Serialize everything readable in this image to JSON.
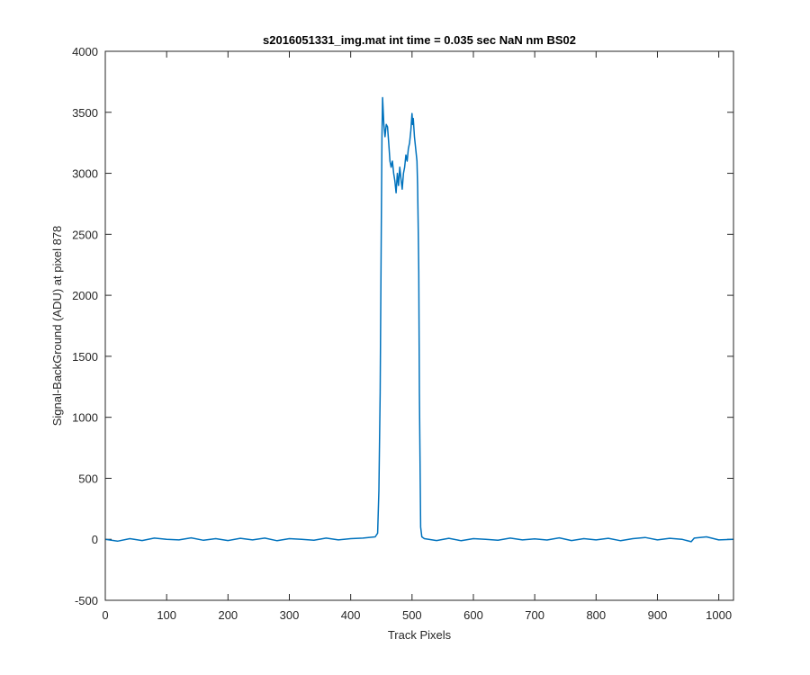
{
  "chart_data": {
    "type": "line",
    "title": "s2016051331_img.mat int time = 0.035 sec  NaN nm BS02",
    "xlabel": "Track Pixels",
    "ylabel": "Signal-BackGround (ADU) at pixel 878",
    "xlim": [
      0,
      1024
    ],
    "ylim": [
      -500,
      4000
    ],
    "xticks": [
      0,
      100,
      200,
      300,
      400,
      500,
      600,
      700,
      800,
      900,
      1000
    ],
    "yticks": [
      -500,
      0,
      500,
      1000,
      1500,
      2000,
      2500,
      3000,
      3500,
      4000
    ],
    "grid": false,
    "box": true,
    "series": [
      {
        "color": "#0072bd",
        "x": [
          0,
          20,
          40,
          60,
          80,
          100,
          120,
          140,
          160,
          180,
          200,
          220,
          240,
          260,
          280,
          300,
          320,
          340,
          360,
          380,
          400,
          420,
          440,
          444,
          446,
          448,
          450,
          451,
          452,
          454,
          456,
          458,
          460,
          462,
          464,
          466,
          468,
          470,
          472,
          474,
          476,
          478,
          480,
          482,
          484,
          486,
          488,
          490,
          492,
          494,
          496,
          498,
          500,
          501,
          502,
          504,
          506,
          508,
          509,
          510,
          511,
          512,
          514,
          516,
          520,
          540,
          560,
          580,
          600,
          620,
          640,
          660,
          680,
          700,
          720,
          740,
          760,
          780,
          800,
          820,
          840,
          860,
          880,
          900,
          920,
          940,
          955,
          960,
          980,
          1000,
          1024
        ],
        "y": [
          0,
          -15,
          5,
          -10,
          10,
          0,
          -5,
          12,
          -8,
          5,
          -10,
          8,
          -5,
          10,
          -12,
          5,
          0,
          -8,
          10,
          -5,
          5,
          10,
          20,
          50,
          400,
          1200,
          2600,
          3300,
          3620,
          3400,
          3300,
          3400,
          3380,
          3250,
          3100,
          3050,
          3100,
          3000,
          2940,
          2840,
          3000,
          2900,
          3050,
          2950,
          2870,
          3000,
          3050,
          3150,
          3100,
          3200,
          3250,
          3350,
          3490,
          3400,
          3450,
          3300,
          3200,
          3100,
          2900,
          2600,
          2200,
          1200,
          100,
          20,
          5,
          -10,
          8,
          -12,
          5,
          0,
          -8,
          10,
          -5,
          3,
          -6,
          12,
          -10,
          5,
          -5,
          8,
          -12,
          5,
          15,
          -5,
          8,
          0,
          -20,
          10,
          20,
          -5,
          0
        ]
      }
    ]
  }
}
